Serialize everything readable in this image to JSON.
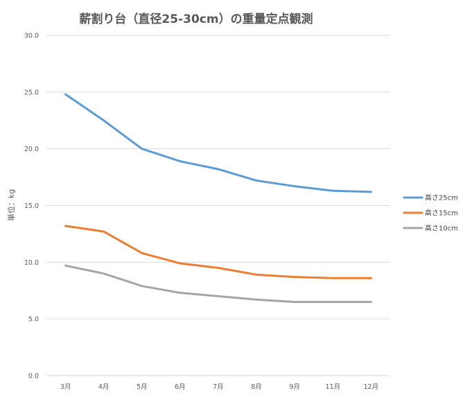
{
  "chart_data": {
    "type": "line",
    "title": "薪割り台（直径25-30cm）の重量定点観測",
    "xlabel": "",
    "ylabel": "単位：kg",
    "categories": [
      "3月",
      "4月",
      "5月",
      "6月",
      "7月",
      "8月",
      "9月",
      "11月",
      "12月"
    ],
    "ylim": [
      0,
      30
    ],
    "yticks": [
      "0.0",
      "5.0",
      "10.0",
      "15.0",
      "20.0",
      "25.0",
      "30.0"
    ],
    "ytick_values": [
      0,
      5,
      10,
      15,
      20,
      25,
      30
    ],
    "grid": true,
    "legend_position": "right",
    "series": [
      {
        "name": "高さ25cm",
        "color": "#5b9bd5",
        "values": [
          24.8,
          22.5,
          20.0,
          18.9,
          18.2,
          17.2,
          16.7,
          16.3,
          16.2
        ]
      },
      {
        "name": "高さ15cm",
        "color": "#ed7d31",
        "values": [
          13.2,
          12.7,
          10.8,
          9.9,
          9.5,
          8.9,
          8.7,
          8.6,
          8.6
        ]
      },
      {
        "name": "高さ10cm",
        "color": "#a5a5a5",
        "values": [
          9.7,
          9.0,
          7.9,
          7.3,
          7.0,
          6.7,
          6.5,
          6.5,
          6.5
        ]
      }
    ],
    "colors": {
      "grid": "#d9d9d9",
      "text": "#595959"
    }
  }
}
